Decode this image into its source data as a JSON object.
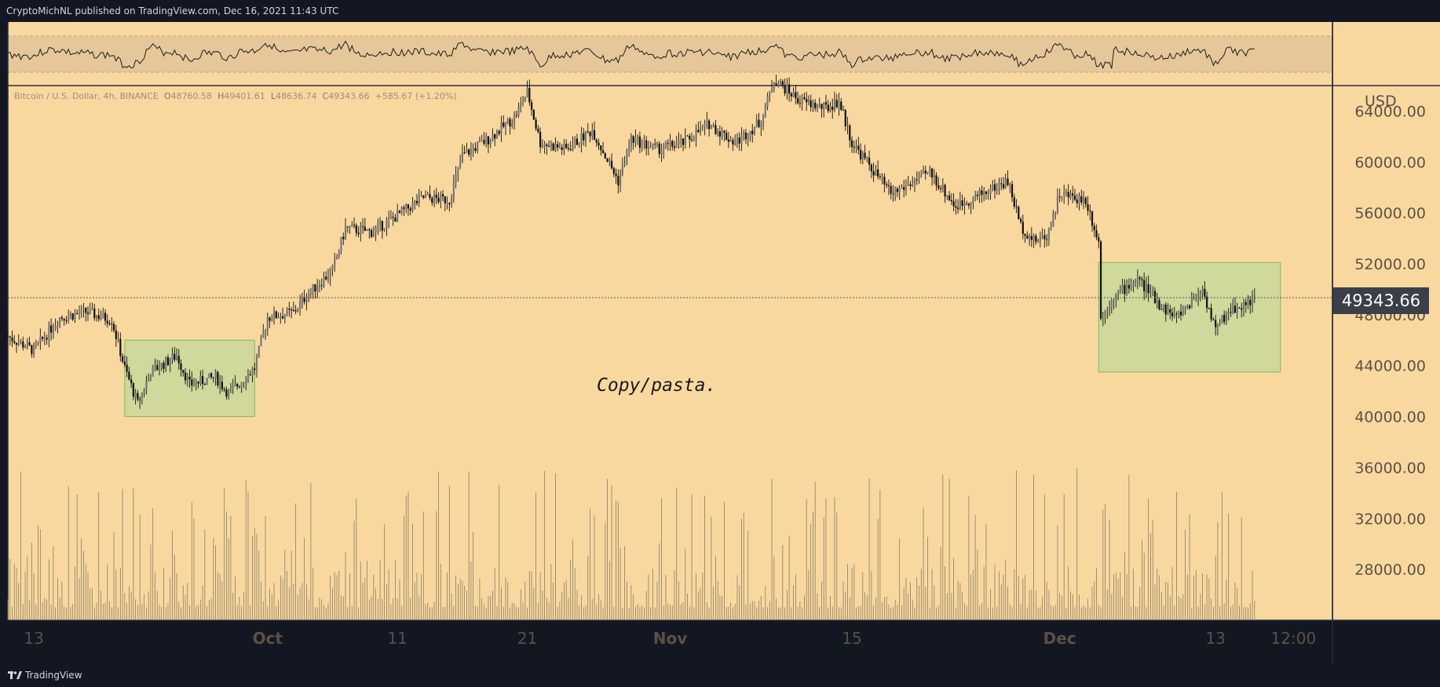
{
  "header": {
    "published_text": "CryptoMichNL published on TradingView.com, Dec 16, 2021 11:43 UTC"
  },
  "symbol_line": {
    "name": "Bitcoin / U.S. Dollar, 4h, BINANCE",
    "open_label": "O",
    "open": "48760.58",
    "high_label": "H",
    "high": "49401.61",
    "low_label": "L",
    "low": "48636.74",
    "close_label": "C",
    "close": "49343.66",
    "change": "+585.67 (+1.20%)"
  },
  "annotation": "Copy/pasta.",
  "footer": {
    "brand": "TradingView"
  },
  "colors": {
    "background": "#f9d8a0",
    "frame": "#131722",
    "candle": "#111111",
    "volume": "#8a7d63",
    "box_fill": "#c9d89a",
    "box_stroke": "#7fb85c",
    "rsi_band": "#e6c79a"
  },
  "chart_data": {
    "type": "candlestick",
    "title": "Bitcoin / U.S. Dollar, 4h, BINANCE",
    "currency": "USD",
    "y_ticks": [
      "64000.00",
      "60000.00",
      "56000.00",
      "52000.00",
      "48000.00",
      "44000.00",
      "40000.00",
      "36000.00",
      "32000.00",
      "28000.00"
    ],
    "y_tick_values": [
      64000,
      60000,
      56000,
      52000,
      48000,
      44000,
      40000,
      36000,
      32000,
      28000
    ],
    "ylim": [
      24000,
      66000
    ],
    "x_ticks": [
      {
        "label": "13",
        "date": "2021-09-13",
        "bold": false
      },
      {
        "label": "Oct",
        "date": "2021-10-01",
        "bold": true
      },
      {
        "label": "11",
        "date": "2021-10-11",
        "bold": false
      },
      {
        "label": "21",
        "date": "2021-10-21",
        "bold": false
      },
      {
        "label": "Nov",
        "date": "2021-11-01",
        "bold": true
      },
      {
        "label": "15",
        "date": "2021-11-15",
        "bold": false
      },
      {
        "label": "Dec",
        "date": "2021-12-01",
        "bold": true
      },
      {
        "label": "13",
        "date": "2021-12-13",
        "bold": false
      },
      {
        "label": "12:00",
        "date": "2021-12-19",
        "bold": false
      }
    ],
    "xlim": [
      "2021-09-11",
      "2021-12-22"
    ],
    "last_price": "49343.66",
    "price_path": [
      [
        "2021-09-11",
        46300
      ],
      [
        "2021-09-13",
        45200
      ],
      [
        "2021-09-15",
        47800
      ],
      [
        "2021-09-17",
        48200
      ],
      [
        "2021-09-19",
        47600
      ],
      [
        "2021-09-20",
        43800
      ],
      [
        "2021-09-21",
        41000
      ],
      [
        "2021-09-22",
        43500
      ],
      [
        "2021-09-24",
        44800
      ],
      [
        "2021-09-25",
        42500
      ],
      [
        "2021-09-27",
        43100
      ],
      [
        "2021-09-28",
        41800
      ],
      [
        "2021-09-30",
        43800
      ],
      [
        "2021-10-01",
        47800
      ],
      [
        "2021-10-03",
        48200
      ],
      [
        "2021-10-04",
        49500
      ],
      [
        "2021-10-06",
        51500
      ],
      [
        "2021-10-07",
        54800
      ],
      [
        "2021-10-09",
        54500
      ],
      [
        "2021-10-11",
        55800
      ],
      [
        "2021-10-13",
        57200
      ],
      [
        "2021-10-15",
        57000
      ],
      [
        "2021-10-16",
        60500
      ],
      [
        "2021-10-18",
        61800
      ],
      [
        "2021-10-20",
        63500
      ],
      [
        "2021-10-21",
        65500
      ],
      [
        "2021-10-22",
        61500
      ],
      [
        "2021-10-24",
        61000
      ],
      [
        "2021-10-26",
        62500
      ],
      [
        "2021-10-28",
        58500
      ],
      [
        "2021-10-29",
        61800
      ],
      [
        "2021-10-31",
        61000
      ],
      [
        "2021-11-02",
        61500
      ],
      [
        "2021-11-04",
        63000
      ],
      [
        "2021-11-06",
        61500
      ],
      [
        "2021-11-08",
        63200
      ],
      [
        "2021-11-09",
        66500
      ],
      [
        "2021-11-11",
        64800
      ],
      [
        "2021-11-13",
        64200
      ],
      [
        "2021-11-14",
        64800
      ],
      [
        "2021-11-15",
        61500
      ],
      [
        "2021-11-16",
        60200
      ],
      [
        "2021-11-18",
        57500
      ],
      [
        "2021-11-19",
        58000
      ],
      [
        "2021-11-21",
        59200
      ],
      [
        "2021-11-23",
        56500
      ],
      [
        "2021-11-25",
        57500
      ],
      [
        "2021-11-27",
        58500
      ],
      [
        "2021-11-28",
        55000
      ],
      [
        "2021-11-29",
        53800
      ],
      [
        "2021-11-30",
        54200
      ],
      [
        "2021-12-01",
        57500
      ],
      [
        "2021-12-03",
        57000
      ],
      [
        "2021-12-04",
        53800
      ],
      [
        "2021-12-04",
        47300
      ],
      [
        "2021-12-05",
        49300
      ],
      [
        "2021-12-07",
        50800
      ],
      [
        "2021-12-09",
        48500
      ],
      [
        "2021-12-10",
        47800
      ],
      [
        "2021-12-12",
        50000
      ],
      [
        "2021-12-13",
        46800
      ],
      [
        "2021-12-14",
        48300
      ],
      [
        "2021-12-15",
        48700
      ],
      [
        "2021-12-16",
        49343.66
      ]
    ],
    "volume_scale_max": 36000
  }
}
